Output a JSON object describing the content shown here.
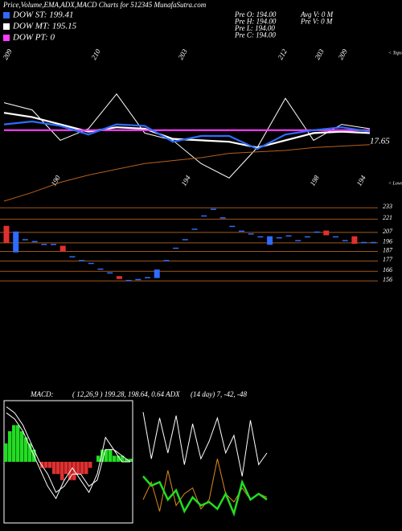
{
  "header": {
    "title": "Price,Volume,EMA,ADX,MACD Charts for 512345 MunafaSutra.com"
  },
  "legend": [
    {
      "label": "DOW ST: 199.41",
      "color": "#2f6bff"
    },
    {
      "label": "DOW MT: 195.15",
      "color": "#ffffff"
    },
    {
      "label": "DOW PT: 0",
      "color": "#ff3cff"
    }
  ],
  "stats_left": [
    "Pre   O: 194.00",
    "Pre   H: 194.00",
    "Pre   L: 194.00",
    "Pre   C: 194.00"
  ],
  "stats_right": [
    "Avg V: 0  M",
    "Pre   V: 0  M"
  ],
  "chart_data": [
    {
      "type": "line",
      "tops": [
        "209",
        "210",
        "203",
        "212",
        "203",
        "209"
      ],
      "tops_marker": "< Tops",
      "lows": [
        "190",
        "194",
        "198",
        "194"
      ],
      "lows_marker": "< Lows",
      "annotation": "17.65",
      "ylim": [
        0,
        100
      ],
      "series": [
        {
          "color": "#ffffff",
          "values": [
            68,
            63,
            42,
            50,
            74,
            47,
            42,
            26,
            16,
            37,
            71,
            42,
            53,
            50
          ]
        },
        {
          "color": "#b8601c",
          "values": [
            0,
            6,
            13,
            18,
            22,
            26,
            28,
            30,
            33,
            34,
            35,
            37,
            38,
            39
          ]
        },
        {
          "name": "DOW MT",
          "color": "#ffffff",
          "values": [
            61,
            58,
            53,
            48,
            51,
            50,
            43,
            42,
            41,
            37,
            42,
            47,
            48,
            47
          ]
        },
        {
          "name": "DOW PT",
          "color": "#ff3cff",
          "values": [
            49,
            49,
            49,
            49,
            49,
            49,
            49,
            49,
            49,
            49,
            49,
            49,
            49,
            49
          ]
        },
        {
          "name": "DOW ST",
          "color": "#2f6bff",
          "values": [
            53,
            55,
            52,
            46,
            53,
            52,
            41,
            45,
            45,
            36,
            46,
            49,
            51,
            48
          ]
        }
      ]
    },
    {
      "type": "candlestick",
      "ylim": [
        151,
        240
      ],
      "yticks": [
        233,
        221,
        207,
        196,
        187,
        177,
        166,
        156
      ],
      "up_color": "#2f6bff",
      "down_color": "#e03030",
      "grid_color": "#a0561c",
      "open": [
        214,
        186,
        200,
        198,
        195,
        195,
        193,
        182,
        178,
        175,
        169,
        165,
        161,
        157,
        158,
        160,
        159,
        178,
        191,
        200,
        211,
        225,
        232,
        223,
        214,
        209,
        206,
        203,
        194,
        202,
        204,
        199,
        203,
        208,
        209,
        203,
        199,
        203,
        197,
        197
      ],
      "close": [
        196,
        208,
        200,
        198,
        195,
        195,
        187,
        182,
        178,
        175,
        169,
        165,
        158,
        157,
        158,
        160,
        168,
        178,
        191,
        200,
        211,
        225,
        232,
        223,
        214,
        209,
        206,
        203,
        203,
        202,
        204,
        199,
        203,
        208,
        204,
        203,
        199,
        195,
        197,
        197
      ]
    },
    {
      "type": "macd",
      "label": "MACD:",
      "title": "( 12,26,9 ) 199.28,  198.64,  0.64 ADX",
      "ylim": [
        -10,
        10
      ],
      "histogram": [
        3,
        5,
        6,
        6,
        5,
        4,
        3,
        2,
        0,
        -1,
        -1,
        -1,
        -2,
        -2,
        -3,
        -2,
        -3,
        -3,
        -2,
        -2,
        -2,
        -1,
        0,
        1,
        2,
        2,
        2,
        1,
        1,
        1,
        0.5,
        0.5
      ],
      "series": [
        {
          "color": "#ffffff",
          "values": [
            8,
            7,
            5,
            2,
            -1,
            -4,
            -6,
            -3,
            -1,
            -3,
            -5,
            -2,
            4,
            2,
            0,
            0
          ]
        },
        {
          "color": "#ffffff",
          "values": [
            9,
            8,
            6,
            3,
            0,
            -2,
            -5,
            -4,
            -2,
            -2,
            -4,
            -3,
            2,
            2,
            1,
            0
          ]
        }
      ]
    },
    {
      "type": "adx",
      "title": "(14  day) 7, -42, -48",
      "ylim": [
        0,
        100
      ],
      "series": [
        {
          "color": "#ffffff",
          "values": [
            95,
            55,
            90,
            60,
            92,
            50,
            85,
            55,
            70,
            90,
            60,
            75,
            40,
            88,
            50,
            60
          ]
        },
        {
          "color": "#e08a1a",
          "values": [
            20,
            35,
            10,
            45,
            15,
            25,
            30,
            12,
            20,
            55,
            25,
            18,
            30,
            20,
            25,
            22
          ]
        },
        {
          "color": "#22dd22",
          "values": [
            40,
            32,
            35,
            20,
            28,
            10,
            22,
            15,
            18,
            12,
            25,
            8,
            35,
            20,
            25,
            20
          ]
        }
      ]
    }
  ]
}
